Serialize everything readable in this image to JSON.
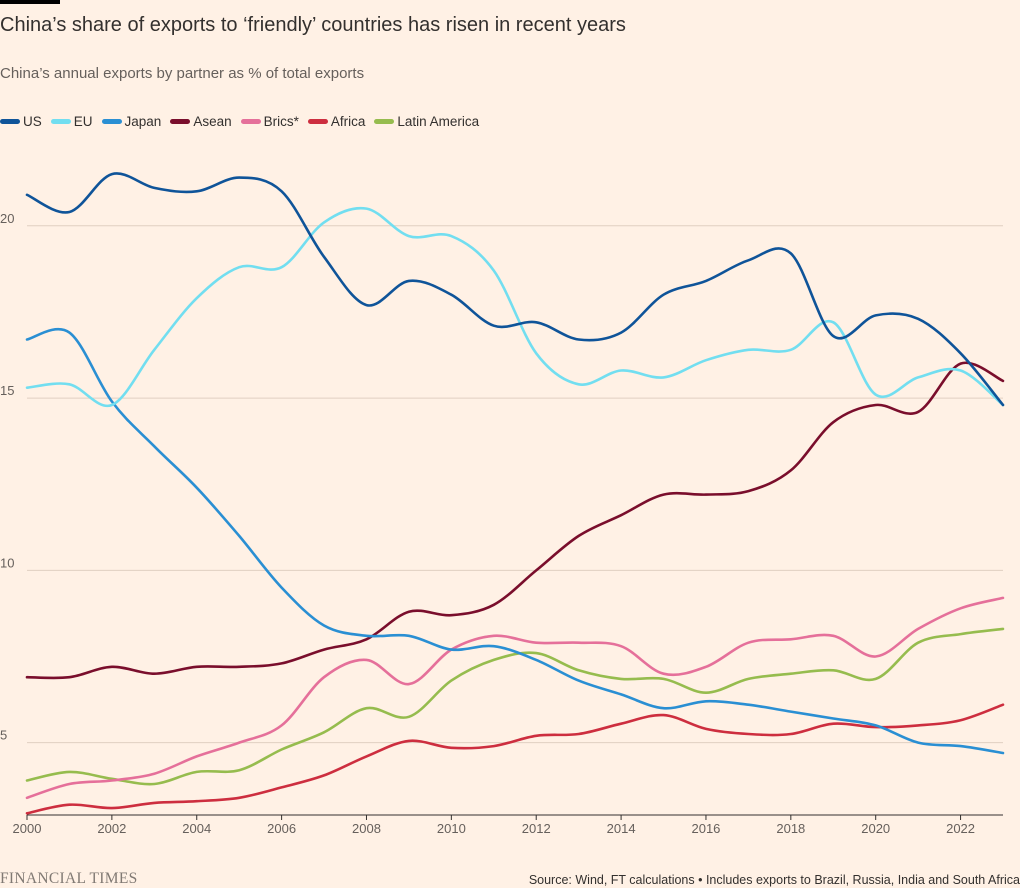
{
  "title": "China’s share of exports to ‘friendly’ countries has risen in recent years",
  "subtitle": "China’s annual exports by partner as % of total exports",
  "source": "Source: Wind, FT calculations • Includes exports to Brazil, Russia, India and South Africa",
  "brand": "FINANCIAL TIMES",
  "chart_data": {
    "type": "line",
    "x": [
      2000,
      2001,
      2002,
      2003,
      2004,
      2005,
      2006,
      2007,
      2008,
      2009,
      2010,
      2011,
      2012,
      2013,
      2014,
      2015,
      2016,
      2017,
      2018,
      2019,
      2020,
      2021,
      2022,
      2023
    ],
    "xlim": [
      2000,
      2023
    ],
    "ylim": [
      2.9,
      22.2
    ],
    "xticks": [
      2000,
      2002,
      2004,
      2006,
      2008,
      2010,
      2012,
      2014,
      2016,
      2018,
      2020,
      2022
    ],
    "yticks": [
      5,
      10,
      15,
      20
    ],
    "grid": true,
    "legend_position": "top-left",
    "series": [
      {
        "name": "US",
        "color": "#0f5499",
        "values": [
          20.9,
          20.4,
          21.5,
          21.1,
          21.0,
          21.4,
          21.0,
          19.1,
          17.7,
          18.4,
          18.0,
          17.1,
          17.2,
          16.7,
          16.9,
          18.0,
          18.4,
          19.0,
          19.2,
          16.8,
          17.4,
          17.3,
          16.3,
          14.8
        ]
      },
      {
        "name": "EU",
        "color": "#72def0",
        "values": [
          15.3,
          15.4,
          14.8,
          16.4,
          17.9,
          18.8,
          18.8,
          20.1,
          20.5,
          19.7,
          19.7,
          18.7,
          16.3,
          15.4,
          15.8,
          15.6,
          16.1,
          16.4,
          16.4,
          17.2,
          15.1,
          15.6,
          15.8,
          14.8
        ]
      },
      {
        "name": "Japan",
        "color": "#2a8fd3",
        "values": [
          16.7,
          16.9,
          14.9,
          13.6,
          12.4,
          11.0,
          9.5,
          8.4,
          8.1,
          8.1,
          7.7,
          7.8,
          7.4,
          6.8,
          6.4,
          6.0,
          6.2,
          6.1,
          5.9,
          5.7,
          5.5,
          5.0,
          4.9,
          4.7
        ]
      },
      {
        "name": "Asean",
        "color": "#7a0e2c",
        "values": [
          6.9,
          6.9,
          7.2,
          7.0,
          7.2,
          7.2,
          7.3,
          7.7,
          8.0,
          8.8,
          8.7,
          9.0,
          10.0,
          11.0,
          11.6,
          12.2,
          12.2,
          12.3,
          12.9,
          14.3,
          14.8,
          14.6,
          16.0,
          15.5
        ]
      },
      {
        "name": "Brics*",
        "color": "#e5709a",
        "values": [
          3.4,
          3.8,
          3.9,
          4.1,
          4.6,
          5.0,
          5.5,
          6.9,
          7.4,
          6.7,
          7.7,
          8.1,
          7.9,
          7.9,
          7.8,
          7.0,
          7.2,
          7.9,
          8.0,
          8.1,
          7.5,
          8.3,
          8.9,
          9.2
        ]
      },
      {
        "name": "Africa",
        "color": "#cd2e3f",
        "values": [
          2.95,
          3.2,
          3.1,
          3.25,
          3.3,
          3.4,
          3.7,
          4.05,
          4.6,
          5.05,
          4.85,
          4.9,
          5.2,
          5.25,
          5.55,
          5.8,
          5.4,
          5.25,
          5.25,
          5.55,
          5.45,
          5.5,
          5.65,
          6.1
        ]
      },
      {
        "name": "Latin America",
        "color": "#96bc4e",
        "values": [
          3.9,
          4.15,
          3.95,
          3.8,
          4.15,
          4.2,
          4.8,
          5.3,
          6.0,
          5.75,
          6.8,
          7.4,
          7.6,
          7.1,
          6.85,
          6.85,
          6.45,
          6.85,
          7.0,
          7.1,
          6.85,
          7.9,
          8.15,
          8.3
        ]
      }
    ]
  }
}
